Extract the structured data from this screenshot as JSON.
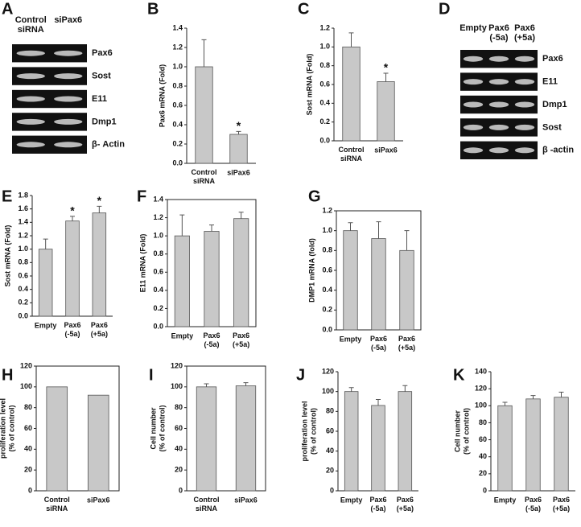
{
  "chart_data": [
    {
      "type": "gel",
      "panel": "A",
      "lanes": [
        "Control siRNA",
        "siPax6"
      ],
      "bands": [
        "Pax6",
        "Sost",
        "E11",
        "Dmp1",
        "β- Actin"
      ]
    },
    {
      "type": "bar",
      "panel": "B",
      "ylabel": [
        "Pax6 mRNA (Fold)"
      ],
      "categories": [
        "Control siRNA",
        "siPax6"
      ],
      "values": [
        1.0,
        0.3
      ],
      "errors": [
        0.28,
        0.03
      ],
      "significance": [
        null,
        "*"
      ],
      "color": "#c8c8c8",
      "frame": false,
      "ylim": [
        0,
        1.4
      ],
      "yticks": [
        {
          "value": 0,
          "label": "0.0"
        },
        0.2,
        0.4,
        0.6,
        0.8,
        {
          "value": 1,
          "label": "1.0"
        },
        1.2,
        1.4
      ]
    },
    {
      "type": "bar",
      "panel": "C",
      "ylabel": [
        "Sost  mRNA (Fold)"
      ],
      "categories": [
        "Control siRNA",
        "siPax6"
      ],
      "values": [
        1.0,
        0.63
      ],
      "errors": [
        0.15,
        0.09
      ],
      "significance": [
        null,
        "*"
      ],
      "color": "#c8c8c8",
      "frame": false,
      "ylim": [
        0,
        1.2
      ],
      "yticks": [
        {
          "value": 0,
          "label": "0.0"
        },
        0.2,
        0.4,
        0.6,
        0.8,
        {
          "value": 1,
          "label": "1.0"
        },
        1.2
      ]
    },
    {
      "type": "gel",
      "panel": "D",
      "lanes": [
        "Empty",
        "Pax6 (-5a)",
        "Pax6 (+5a)"
      ],
      "bands": [
        "Pax6",
        "E11",
        "Dmp1",
        "Sost",
        "β -actin"
      ]
    },
    {
      "type": "bar",
      "panel": "E",
      "ylabel": [
        "Sost  mRNA (Fold)"
      ],
      "categories": [
        "Empty",
        "Pax6 (-5a)",
        "Pax6 (+5a)"
      ],
      "values": [
        1.0,
        1.42,
        1.54
      ],
      "errors": [
        0.15,
        0.07,
        0.1
      ],
      "significance": [
        null,
        "*",
        "*"
      ],
      "color": "#c8c8c8",
      "frame": false,
      "ylim": [
        0,
        1.8
      ],
      "yticks": [
        {
          "value": 0,
          "label": "0.0"
        },
        0.2,
        0.4,
        0.6,
        0.8,
        {
          "value": 1,
          "label": "1.0"
        },
        1.2,
        1.4,
        1.6,
        1.8
      ]
    },
    {
      "type": "bar",
      "panel": "F",
      "ylabel": [
        "E11  mRNA (Fold)"
      ],
      "categories": [
        "Empty",
        "Pax6 (-5a)",
        "Pax6 (+5a)"
      ],
      "values": [
        1.0,
        1.05,
        1.19
      ],
      "errors": [
        0.23,
        0.07,
        0.07
      ],
      "color": "#c8c8c8",
      "frame": true,
      "ylim": [
        0,
        1.4
      ],
      "yticks": [
        {
          "value": 0,
          "label": "0.0"
        },
        0.2,
        0.4,
        0.6,
        0.8,
        {
          "value": 1,
          "label": "1.0"
        },
        1.2,
        1.4
      ]
    },
    {
      "type": "bar",
      "panel": "G",
      "ylabel": [
        "DMP1 mRNA (fold)"
      ],
      "categories": [
        "Empty",
        "Pax6 (-5a)",
        "Pax6 (+5a)"
      ],
      "values": [
        1.0,
        0.92,
        0.8
      ],
      "errors": [
        0.08,
        0.17,
        0.2
      ],
      "color": "#c8c8c8",
      "frame": true,
      "ylim": [
        0,
        1.2
      ],
      "yticks": [
        {
          "value": 0,
          "label": "0.0"
        },
        0.2,
        0.4,
        0.6,
        0.8,
        {
          "value": 1,
          "label": "1.0"
        },
        1.2
      ]
    },
    {
      "type": "bar",
      "panel": "H",
      "ylabel": [
        "proliferation level",
        "(% of control)"
      ],
      "categories": [
        "Control siRNA",
        "siPax6"
      ],
      "values": [
        100,
        92
      ],
      "color": "#c8c8c8",
      "frame": true,
      "ylim": [
        0,
        120
      ],
      "yticks": [
        0,
        20,
        40,
        60,
        80,
        100,
        120
      ]
    },
    {
      "type": "bar",
      "panel": "I",
      "ylabel": [
        "Cell number",
        "(% of control)"
      ],
      "categories": [
        "Control siRNA",
        "siPax6"
      ],
      "values": [
        100,
        101
      ],
      "errors": [
        3,
        3
      ],
      "color": "#c8c8c8",
      "frame": true,
      "ylim": [
        0,
        120
      ],
      "yticks": [
        0,
        20,
        40,
        60,
        80,
        100,
        120
      ]
    },
    {
      "type": "bar",
      "panel": "J",
      "ylabel": [
        "proliferation level",
        "(% of control)"
      ],
      "categories": [
        "Empty",
        "Pax6 (-5a)",
        "Pax6 (+5a)"
      ],
      "values": [
        100,
        86,
        100
      ],
      "errors": [
        4,
        6,
        6
      ],
      "color": "#c8c8c8",
      "frame": false,
      "ylim": [
        0,
        120
      ],
      "yticks": [
        0,
        20,
        40,
        60,
        80,
        100,
        120
      ]
    },
    {
      "type": "bar",
      "panel": "K",
      "ylabel": [
        "Cell number",
        "(% of control)"
      ],
      "categories": [
        "Empty",
        "Pax6 (-5a)",
        "Pax6 (+5a)"
      ],
      "values": [
        100,
        108,
        110
      ],
      "errors": [
        4,
        4,
        6
      ],
      "color": "#c8c8c8",
      "frame": false,
      "ylim": [
        0,
        140
      ],
      "yticks": [
        0,
        20,
        40,
        60,
        80,
        100,
        120,
        140
      ]
    }
  ]
}
